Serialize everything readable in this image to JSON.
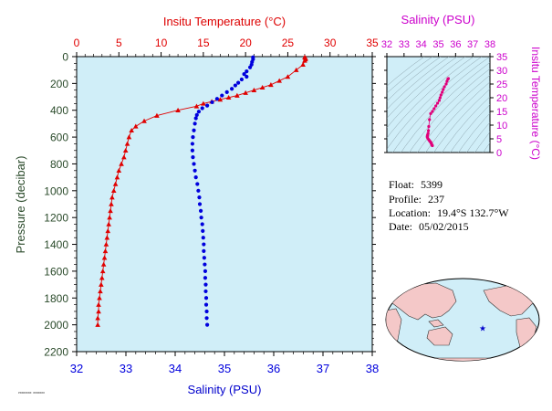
{
  "chart_data": [
    {
      "type": "scatter",
      "name": "profile-plot",
      "top_axis_label": "Insitu Temperature (°C)",
      "bottom_axis_label": "Salinity (PSU)",
      "ylabel": "Pressure (decibar)",
      "temperature_range": [
        0,
        35
      ],
      "temperature_ticks": [
        "0",
        "5",
        "10",
        "15",
        "20",
        "25",
        "30",
        "35"
      ],
      "salinity_range": [
        32,
        38
      ],
      "salinity_ticks": [
        "32",
        "33",
        "34",
        "35",
        "36",
        "37",
        "38"
      ],
      "pressure_range": [
        0,
        2200
      ],
      "pressure_ticks": [
        "0",
        "200",
        "400",
        "600",
        "800",
        "1000",
        "1200",
        "1400",
        "1600",
        "1800",
        "2000",
        "2200"
      ],
      "y_inverted": true,
      "background_color": "#d0eef8",
      "temperature_color": "#e00000",
      "salinity_color": "#0000dd",
      "temperature_profile": [
        [
          27.0,
          5
        ],
        [
          27.1,
          10
        ],
        [
          27.1,
          20
        ],
        [
          27.0,
          30
        ],
        [
          26.8,
          60
        ],
        [
          26.0,
          100
        ],
        [
          25.0,
          150
        ],
        [
          24.0,
          180
        ],
        [
          23.0,
          210
        ],
        [
          22.0,
          230
        ],
        [
          21.0,
          250
        ],
        [
          20.0,
          270
        ],
        [
          19.0,
          290
        ],
        [
          18.0,
          305
        ],
        [
          17.0,
          320
        ],
        [
          16.0,
          335
        ],
        [
          15.0,
          350
        ],
        [
          14.2,
          370
        ],
        [
          12.0,
          400
        ],
        [
          9.5,
          440
        ],
        [
          8.0,
          480
        ],
        [
          7.0,
          520
        ],
        [
          6.5,
          550
        ],
        [
          6.2,
          600
        ],
        [
          6.0,
          650
        ],
        [
          5.8,
          700
        ],
        [
          5.6,
          750
        ],
        [
          5.3,
          800
        ],
        [
          5.0,
          850
        ],
        [
          4.8,
          900
        ],
        [
          4.6,
          950
        ],
        [
          4.4,
          1000
        ],
        [
          4.2,
          1050
        ],
        [
          4.1,
          1100
        ],
        [
          4.0,
          1150
        ],
        [
          3.9,
          1200
        ],
        [
          3.8,
          1250
        ],
        [
          3.7,
          1300
        ],
        [
          3.6,
          1350
        ],
        [
          3.5,
          1400
        ],
        [
          3.4,
          1450
        ],
        [
          3.3,
          1500
        ],
        [
          3.2,
          1550
        ],
        [
          3.1,
          1600
        ],
        [
          3.0,
          1650
        ],
        [
          2.9,
          1700
        ],
        [
          2.8,
          1750
        ],
        [
          2.7,
          1800
        ],
        [
          2.6,
          1850
        ],
        [
          2.6,
          1900
        ],
        [
          2.5,
          1950
        ],
        [
          2.5,
          2000
        ]
      ],
      "salinity_profile": [
        [
          35.58,
          5
        ],
        [
          35.58,
          20
        ],
        [
          35.56,
          40
        ],
        [
          35.55,
          60
        ],
        [
          35.52,
          80
        ],
        [
          35.45,
          110
        ],
        [
          35.4,
          130
        ],
        [
          35.45,
          150
        ],
        [
          35.35,
          170
        ],
        [
          35.28,
          195
        ],
        [
          35.22,
          215
        ],
        [
          35.15,
          240
        ],
        [
          35.05,
          265
        ],
        [
          34.95,
          290
        ],
        [
          34.85,
          315
        ],
        [
          34.75,
          340
        ],
        [
          34.65,
          365
        ],
        [
          34.55,
          385
        ],
        [
          34.48,
          410
        ],
        [
          34.44,
          435
        ],
        [
          34.42,
          460
        ],
        [
          34.4,
          500
        ],
        [
          34.38,
          550
        ],
        [
          34.36,
          600
        ],
        [
          34.35,
          650
        ],
        [
          34.35,
          700
        ],
        [
          34.36,
          750
        ],
        [
          34.38,
          800
        ],
        [
          34.4,
          850
        ],
        [
          34.42,
          900
        ],
        [
          34.45,
          950
        ],
        [
          34.47,
          1000
        ],
        [
          34.49,
          1050
        ],
        [
          34.5,
          1100
        ],
        [
          34.52,
          1150
        ],
        [
          34.53,
          1200
        ],
        [
          34.55,
          1250
        ],
        [
          34.56,
          1300
        ],
        [
          34.57,
          1350
        ],
        [
          34.58,
          1400
        ],
        [
          34.58,
          1450
        ],
        [
          34.59,
          1500
        ],
        [
          34.6,
          1550
        ],
        [
          34.61,
          1600
        ],
        [
          34.61,
          1650
        ],
        [
          34.62,
          1700
        ],
        [
          34.62,
          1750
        ],
        [
          34.63,
          1800
        ],
        [
          34.63,
          1850
        ],
        [
          34.64,
          1900
        ],
        [
          34.64,
          1950
        ],
        [
          34.65,
          2000
        ]
      ]
    },
    {
      "type": "scatter",
      "name": "ts-diagram",
      "xlabel": "Salinity (PSU)",
      "ylabel": "Insitu Temperature (°C)",
      "salinity_range": [
        32,
        38
      ],
      "salinity_ticks": [
        "32",
        "33",
        "34",
        "35",
        "36",
        "37",
        "38"
      ],
      "temperature_range": [
        0,
        35
      ],
      "temperature_ticks": [
        "0",
        "5",
        "10",
        "15",
        "20",
        "25",
        "30",
        "35"
      ],
      "point_color": "#e0007a",
      "axis_color": "#cc00cc",
      "background_color": "#d0eef8",
      "points": [
        [
          35.58,
          27.0
        ],
        [
          35.55,
          26.8
        ],
        [
          35.5,
          26.0
        ],
        [
          35.45,
          25.0
        ],
        [
          35.35,
          24.0
        ],
        [
          35.28,
          23.0
        ],
        [
          35.22,
          22.0
        ],
        [
          35.15,
          21.0
        ],
        [
          35.1,
          20.0
        ],
        [
          35.05,
          19.0
        ],
        [
          34.95,
          18.0
        ],
        [
          34.85,
          17.0
        ],
        [
          34.75,
          16.0
        ],
        [
          34.65,
          15.0
        ],
        [
          34.55,
          14.2
        ],
        [
          34.48,
          12.0
        ],
        [
          34.44,
          9.5
        ],
        [
          34.42,
          8.0
        ],
        [
          34.4,
          7.0
        ],
        [
          34.38,
          6.5
        ],
        [
          34.36,
          6.2
        ],
        [
          34.35,
          5.8
        ],
        [
          34.36,
          5.5
        ],
        [
          34.4,
          5.0
        ],
        [
          34.45,
          4.6
        ],
        [
          34.49,
          4.2
        ],
        [
          34.53,
          3.9
        ],
        [
          34.56,
          3.7
        ],
        [
          34.58,
          3.4
        ],
        [
          34.6,
          3.1
        ],
        [
          34.62,
          2.8
        ],
        [
          34.64,
          2.6
        ],
        [
          34.65,
          2.5
        ]
      ]
    }
  ],
  "float_info": {
    "float_label": "Float:",
    "float_value": "5399",
    "profile_label": "Profile:",
    "profile_value": "237",
    "location_label": "Location:",
    "location_value": "19.4°S  132.7°W",
    "date_label": "Date:",
    "date_value": "05/02/2015"
  },
  "map": {
    "marker_lon": -132.7,
    "marker_lat": -19.4,
    "marker_color": "#0000cc",
    "land_color": "#f4c8c8",
    "ocean_color": "#d0eef8"
  },
  "footer_text": "P0000000 0000000"
}
